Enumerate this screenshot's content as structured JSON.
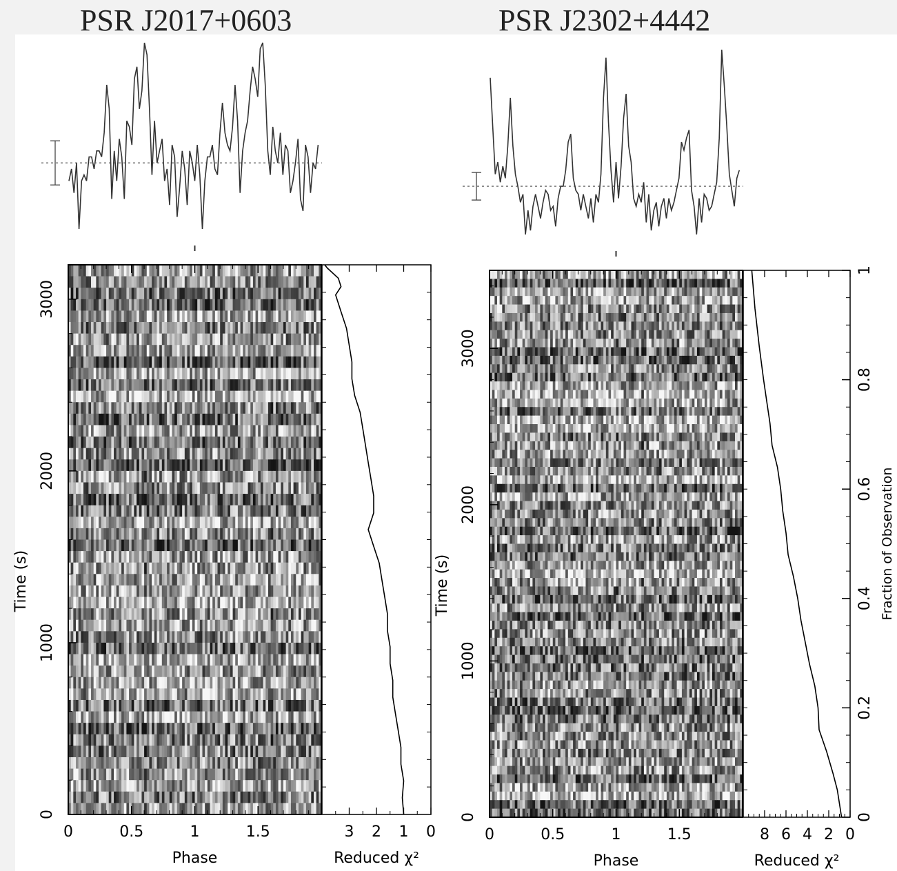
{
  "titles": {
    "left": "PSR J2017+0603",
    "right": "PSR J2302+4442"
  },
  "colors": {
    "background": "#f2f2f2",
    "plot_background": "#ffffff",
    "ink": "#000000"
  },
  "chart_data": [
    {
      "type": "line",
      "title": "PSR J2017+0603",
      "panel": "pulse-profile",
      "x": [
        0.0,
        0.02,
        0.04,
        0.06,
        0.08,
        0.1,
        0.12,
        0.14,
        0.16,
        0.18,
        0.2,
        0.22,
        0.24,
        0.26,
        0.28,
        0.3,
        0.32,
        0.34,
        0.36,
        0.38,
        0.4,
        0.42,
        0.44,
        0.46,
        0.48,
        0.5,
        0.52,
        0.54,
        0.56,
        0.58,
        0.6,
        0.62,
        0.64,
        0.66,
        0.68,
        0.7,
        0.72,
        0.74,
        0.76,
        0.78,
        0.8,
        0.82,
        0.84,
        0.86,
        0.88,
        0.9,
        0.92,
        0.94,
        0.96,
        0.98,
        1.0,
        1.02,
        1.04,
        1.06,
        1.08,
        1.1,
        1.12,
        1.14,
        1.16,
        1.18,
        1.2,
        1.22,
        1.24,
        1.26,
        1.28,
        1.3,
        1.32,
        1.34,
        1.36,
        1.38,
        1.4,
        1.42,
        1.44,
        1.46,
        1.48,
        1.5,
        1.52,
        1.54,
        1.56,
        1.58,
        1.6,
        1.62,
        1.64,
        1.66,
        1.68,
        1.7,
        1.72,
        1.74,
        1.76,
        1.78,
        1.8,
        1.82,
        1.84,
        1.86,
        1.88,
        1.9,
        1.92,
        1.94,
        1.96,
        1.98
      ],
      "y": [
        -0.3,
        -0.1,
        -0.5,
        0.0,
        -1.1,
        -0.3,
        -0.2,
        -0.3,
        0.1,
        0.1,
        -0.1,
        0.2,
        0.2,
        0.1,
        0.5,
        1.3,
        0.9,
        -0.6,
        0.2,
        -0.3,
        0.4,
        0.1,
        -0.6,
        0.7,
        0.6,
        0.3,
        1.4,
        1.6,
        0.9,
        1.2,
        2.0,
        1.8,
        0.9,
        -0.2,
        0.7,
        0.0,
        0.2,
        0.4,
        -0.3,
        -0.1,
        -0.7,
        0.3,
        0.1,
        -0.9,
        -0.4,
        0.2,
        -0.1,
        -0.7,
        0.2,
        0.0,
        -0.3,
        0.3,
        -0.2,
        -1.1,
        -0.3,
        0.1,
        0.1,
        0.3,
        -0.1,
        -0.2,
        0.5,
        1.0,
        0.5,
        0.3,
        0.2,
        0.6,
        1.3,
        0.7,
        -0.5,
        0.2,
        0.5,
        0.7,
        1.2,
        1.6,
        1.4,
        1.1,
        1.9,
        2.0,
        1.3,
        0.2,
        -0.2,
        0.6,
        0.2,
        0.0,
        0.5,
        -0.2,
        0.3,
        0.2,
        -0.5,
        -0.3,
        0.0,
        0.4,
        -0.6,
        -0.8,
        0.3,
        0.1,
        -0.5,
        0.0,
        -0.1,
        0.3
      ],
      "xlim": [
        0,
        2
      ],
      "baseline": 0.0,
      "error_bar": "±1σ"
    },
    {
      "type": "heatmap",
      "title": "PSR J2017+0603",
      "panel": "time-phase",
      "xlabel": "Phase",
      "ylabel": "Time (s)",
      "xlim": [
        0,
        2
      ],
      "ylim": [
        0,
        3200
      ],
      "xticks": [
        "0",
        "0.5",
        "1",
        "1.5"
      ],
      "yticks": [
        "0",
        "1000",
        "2000",
        "3000"
      ],
      "n_phase_bins": 100,
      "n_subints": 48
    },
    {
      "type": "line",
      "title": "PSR J2017+0603",
      "panel": "reduced-chi2",
      "xlabel": "Reduced χ²",
      "xticks": [
        "3",
        "2",
        "1",
        "0"
      ],
      "xlim": [
        4,
        0
      ],
      "chi2": [
        1.0,
        1.05,
        1.0,
        1.1,
        1.1,
        1.2,
        1.3,
        1.4,
        1.4,
        1.5,
        1.5,
        1.6,
        1.6,
        1.7,
        1.8,
        1.9,
        2.0,
        2.1,
        2.3,
        2.1,
        2.1,
        2.2,
        2.3,
        2.4,
        2.5,
        2.6,
        2.8,
        2.9,
        2.9,
        3.0,
        3.1,
        3.3,
        3.5,
        3.3,
        3.4,
        3.6,
        3.8,
        3.9
      ],
      "time": [
        0,
        100,
        200,
        300,
        400,
        500,
        600,
        700,
        800,
        900,
        1000,
        1100,
        1200,
        1300,
        1400,
        1500,
        1550,
        1600,
        1700,
        1800,
        1900,
        2000,
        2100,
        2200,
        2300,
        2400,
        2500,
        2600,
        2700,
        2800,
        2900,
        3000,
        3100,
        3150,
        3200,
        3230,
        3260,
        3280
      ]
    },
    {
      "type": "line",
      "title": "PSR J2302+4442",
      "panel": "pulse-profile",
      "x": [
        0.0,
        0.02,
        0.04,
        0.06,
        0.08,
        0.1,
        0.12,
        0.14,
        0.16,
        0.18,
        0.2,
        0.22,
        0.24,
        0.26,
        0.28,
        0.3,
        0.32,
        0.34,
        0.36,
        0.38,
        0.4,
        0.42,
        0.44,
        0.46,
        0.48,
        0.5,
        0.52,
        0.54,
        0.56,
        0.58,
        0.6,
        0.62,
        0.64,
        0.66,
        0.68,
        0.7,
        0.72,
        0.74,
        0.76,
        0.78,
        0.8,
        0.82,
        0.84,
        0.86,
        0.88,
        0.9,
        0.92,
        0.94,
        0.96,
        0.98,
        1.0,
        1.02,
        1.04,
        1.06,
        1.08,
        1.1,
        1.12,
        1.14,
        1.16,
        1.18,
        1.2,
        1.22,
        1.24,
        1.26,
        1.28,
        1.3,
        1.32,
        1.34,
        1.36,
        1.38,
        1.4,
        1.42,
        1.44,
        1.46,
        1.48,
        1.5,
        1.52,
        1.54,
        1.56,
        1.58,
        1.6,
        1.62,
        1.64,
        1.66,
        1.68,
        1.7,
        1.72,
        1.74,
        1.76,
        1.78,
        1.8,
        1.82,
        1.84,
        1.86,
        1.88,
        1.9,
        1.92,
        1.94,
        1.96,
        1.98
      ],
      "y": [
        2.7,
        1.5,
        0.3,
        0.6,
        0.1,
        0.5,
        0.2,
        1.0,
        2.2,
        1.0,
        0.3,
        0.0,
        -0.4,
        -0.2,
        -1.2,
        -0.6,
        -1.1,
        -0.5,
        -0.2,
        -0.5,
        -0.8,
        -0.4,
        -0.1,
        -0.2,
        -0.6,
        -0.5,
        -1.0,
        -0.3,
        0.0,
        0.0,
        0.4,
        1.1,
        1.3,
        0.2,
        -0.1,
        -0.2,
        -0.6,
        -0.2,
        -0.5,
        -0.8,
        -0.3,
        -0.9,
        -0.2,
        -0.4,
        0.3,
        2.2,
        3.2,
        1.6,
        0.4,
        -0.4,
        0.6,
        -0.3,
        0.5,
        1.7,
        2.3,
        1.0,
        0.6,
        -0.3,
        -0.5,
        -0.2,
        -0.4,
        0.1,
        -0.9,
        -0.2,
        -1.1,
        -0.6,
        -0.4,
        -1.0,
        -0.5,
        -0.3,
        -0.8,
        -0.3,
        -0.6,
        -0.4,
        -0.1,
        0.2,
        1.1,
        0.9,
        1.2,
        1.4,
        -0.1,
        -0.5,
        -1.2,
        -0.3,
        -0.9,
        -0.2,
        -0.3,
        -0.6,
        -0.5,
        -0.2,
        0.1,
        1.2,
        3.4,
        2.5,
        1.5,
        0.3,
        -0.1,
        -0.5,
        0.2,
        0.4
      ],
      "xlim": [
        0,
        2
      ],
      "baseline": 0.0,
      "error_bar": "±1σ"
    },
    {
      "type": "heatmap",
      "title": "PSR J2302+4442",
      "panel": "time-phase",
      "xlabel": "Phase",
      "ylabel": "Time (s)",
      "xlim": [
        0,
        2
      ],
      "ylim": [
        0,
        3500
      ],
      "xticks": [
        "0",
        "0.5",
        "1",
        "1.5"
      ],
      "yticks": [
        "0",
        "1000",
        "2000",
        "3000"
      ],
      "n_phase_bins": 100,
      "n_subints": 64
    },
    {
      "type": "line",
      "title": "PSR J2302+4442",
      "panel": "reduced-chi2",
      "xlabel": "Reduced χ²",
      "xticks": [
        "8",
        "6",
        "4",
        "2",
        "0"
      ],
      "xlim": [
        10,
        0
      ],
      "right_axis_label": "Fraction of Observation",
      "right_axis_ticks": [
        "0",
        "0.2",
        "0.4",
        "0.6",
        "0.8",
        "1"
      ],
      "chi2": [
        0.8,
        1.2,
        1.6,
        2.2,
        2.9,
        3.0,
        3.3,
        3.8,
        4.2,
        4.6,
        4.9,
        5.3,
        5.8,
        6.0,
        6.3,
        6.5,
        6.8,
        7.3,
        7.5,
        7.8,
        8.1,
        8.5,
        8.9,
        9.2
      ],
      "fraction": [
        0.0,
        0.05,
        0.08,
        0.12,
        0.16,
        0.2,
        0.24,
        0.28,
        0.32,
        0.36,
        0.4,
        0.44,
        0.48,
        0.52,
        0.56,
        0.6,
        0.64,
        0.68,
        0.72,
        0.76,
        0.8,
        0.86,
        0.93,
        1.0
      ]
    }
  ]
}
